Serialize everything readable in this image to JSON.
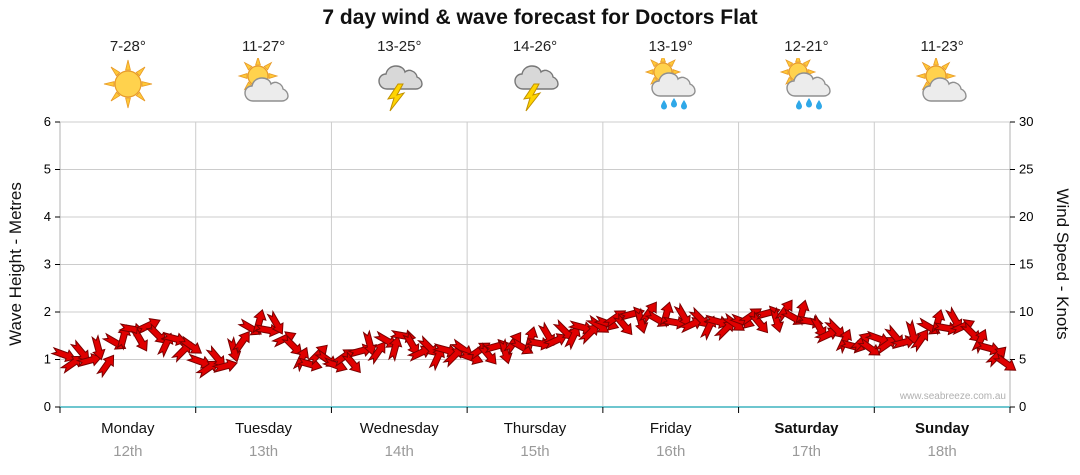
{
  "title": "7 day wind & wave forecast for Doctors Flat",
  "watermark": "www.seabreeze.com.au",
  "axes": {
    "left_label": "Wave Height - Metres",
    "right_label": "Wind Speed - Knots",
    "left_ticks": [
      0,
      1,
      2,
      3,
      4,
      5,
      6
    ],
    "right_ticks": [
      0,
      5,
      10,
      15,
      20,
      25,
      30
    ]
  },
  "colors": {
    "arrow_fill": "#e00000",
    "arrow_stroke": "#7a0000",
    "grid": "#cccccc",
    "axis_line": "#b0b0b0",
    "baseline": "#6ec6cf",
    "tick": "#000000",
    "date_text": "#9a9a9a",
    "watermark": "#b0b0b0"
  },
  "days": [
    {
      "name": "Monday",
      "date": "12th",
      "temp": "7-28°",
      "icon": "sunny-icon",
      "bold": false
    },
    {
      "name": "Tuesday",
      "date": "13th",
      "temp": "11-27°",
      "icon": "partly-cloudy-icon",
      "bold": false
    },
    {
      "name": "Wednesday",
      "date": "14th",
      "temp": "13-25°",
      "icon": "storm-icon",
      "bold": false
    },
    {
      "name": "Thursday",
      "date": "15th",
      "temp": "14-26°",
      "icon": "storm-icon",
      "bold": false
    },
    {
      "name": "Friday",
      "date": "16th",
      "temp": "13-19°",
      "icon": "rain-showers-icon",
      "bold": false
    },
    {
      "name": "Saturday",
      "date": "17th",
      "temp": "12-21°",
      "icon": "rain-showers-icon",
      "bold": true
    },
    {
      "name": "Sunday",
      "date": "18th",
      "temp": "11-23°",
      "icon": "partly-cloudy-icon",
      "bold": true
    }
  ],
  "chart_data": {
    "type": "scatter",
    "marker": "wind-arrow",
    "title": "7 day wind & wave forecast for Doctors Flat",
    "x_categories": [
      "Monday 12th",
      "Tuesday 13th",
      "Wednesday 14th",
      "Thursday 15th",
      "Friday 16th",
      "Saturday 17th",
      "Sunday 18th"
    ],
    "points_per_day": 16,
    "left_axis": {
      "label": "Wave Height - Metres",
      "range": [
        0,
        6
      ],
      "ticks": [
        0,
        1,
        2,
        3,
        4,
        5,
        6
      ]
    },
    "right_axis": {
      "label": "Wind Speed - Knots",
      "range": [
        0,
        30
      ],
      "ticks": [
        0,
        5,
        10,
        15,
        20,
        25,
        30
      ]
    },
    "grid": true,
    "legend": "none",
    "series": [
      {
        "name": "Wind Speed",
        "unit": "knots",
        "values": [
          5.5,
          4.6,
          5.8,
          4.9,
          6.2,
          4.4,
          6.8,
          7.4,
          8.2,
          7.0,
          8.6,
          7.6,
          6.6,
          7.2,
          5.9,
          6.4,
          4.8,
          4.1,
          5.2,
          4.3,
          6.0,
          6.9,
          8.3,
          9.0,
          8.1,
          8.8,
          7.2,
          6.4,
          5.1,
          4.5,
          5.6,
          5.0,
          4.4,
          5.3,
          4.6,
          5.9,
          6.7,
          5.8,
          7.0,
          6.2,
          7.5,
          6.6,
          5.7,
          6.3,
          5.2,
          6.0,
          5.4,
          6.1,
          5.2,
          6.0,
          5.5,
          6.4,
          5.8,
          6.8,
          6.3,
          7.2,
          6.7,
          7.6,
          7.0,
          8.0,
          7.4,
          8.4,
          7.8,
          8.6,
          8.8,
          9.4,
          8.6,
          9.8,
          9.0,
          10.0,
          9.2,
          9.8,
          8.9,
          9.6,
          8.7,
          9.3,
          8.4,
          9.0,
          8.2,
          8.8,
          9.0,
          9.6,
          8.8,
          9.9,
          9.1,
          10.2,
          9.4,
          10.0,
          9.0,
          8.4,
          7.6,
          8.2,
          7.0,
          6.4,
          6.9,
          6.2,
          7.2,
          6.6,
          7.4,
          6.8,
          7.8,
          7.1,
          8.4,
          9.0,
          8.3,
          9.2,
          8.5,
          7.8,
          7.0,
          6.2,
          5.4,
          4.6
        ]
      }
    ],
    "directions_deg": [
      20,
      -35,
      50,
      -15,
      75,
      -55,
      30,
      -75,
      10,
      60,
      -25,
      45,
      -65,
      15,
      -45,
      35,
      20,
      -35,
      50,
      -15,
      75,
      -55,
      30,
      -75,
      10,
      60,
      -25,
      45,
      -65,
      15,
      -45,
      35,
      20,
      -35,
      50,
      -15,
      75,
      -55,
      30,
      -75,
      10,
      60,
      -25,
      45,
      -65,
      15,
      -45,
      35,
      20,
      -35,
      50,
      -15,
      75,
      -55,
      30,
      -75,
      10,
      60,
      -25,
      45,
      -65,
      15,
      -45,
      35,
      20,
      -35,
      50,
      -15,
      75,
      -55,
      30,
      -75,
      10,
      60,
      -25,
      45,
      -65,
      15,
      -45,
      35,
      20,
      -35,
      50,
      -15,
      75,
      -55,
      30,
      -75,
      10,
      60,
      -25,
      45,
      -65,
      15,
      -45,
      35,
      20,
      -35,
      50,
      -15,
      75,
      -55,
      30,
      -75,
      10,
      60,
      -25,
      45,
      -65,
      15,
      -45,
      35
    ]
  }
}
